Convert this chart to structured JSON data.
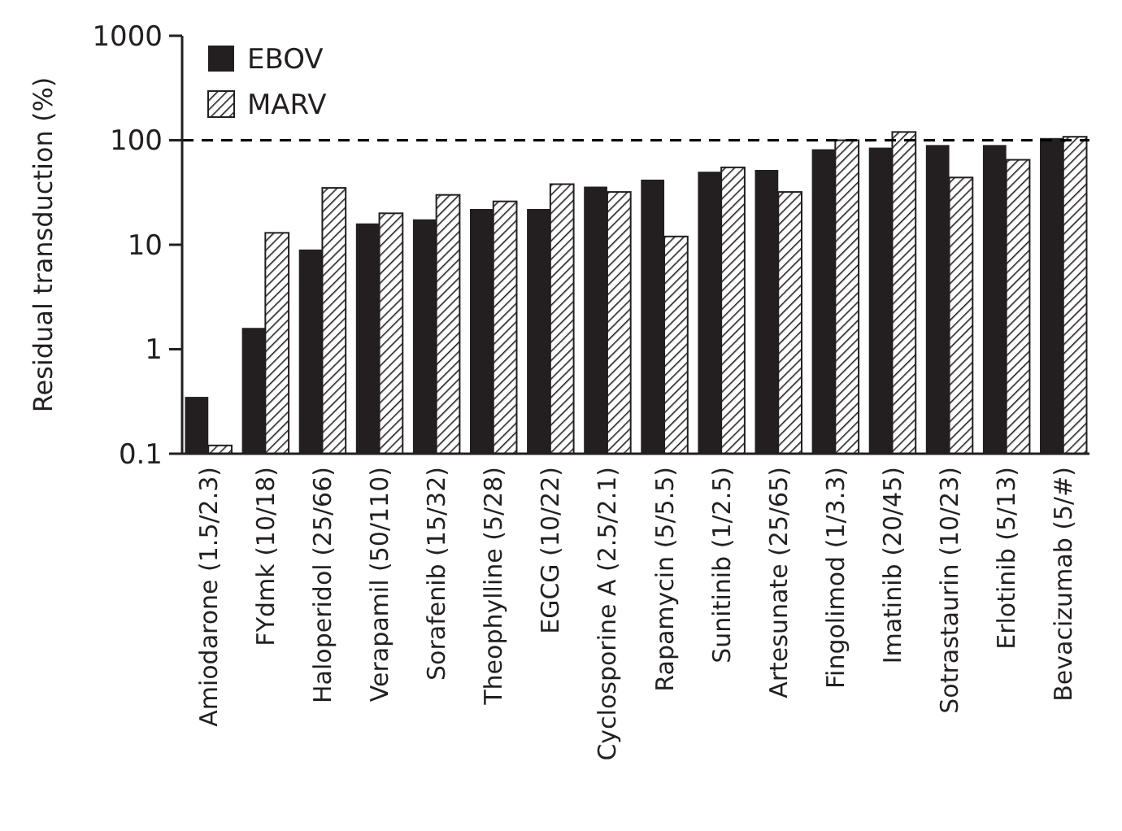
{
  "chart_data": {
    "type": "bar",
    "ylabel": "Residual transduction (%)",
    "log": true,
    "categories": [
      "Amiodarone (1.5/2.3)",
      "FYdmk (10/18)",
      "Haloperidol (25/66)",
      "Verapamil (50/110)",
      "Sorafenib (15/32)",
      "Theophylline (5/28)",
      "EGCG (10/22)",
      "Cyclosporine A (2.5/2.1)",
      "Rapamycin (5/5.5)",
      "Sunitinib (1/2.5)",
      "Artesunate (25/65)",
      "Fingolimod (1/3.3)",
      "Imatinib (20/45)",
      "Sotrastaurin (10/23)",
      "Erlotinib (5/13)",
      "Bevacizumab (5/#)"
    ],
    "series": [
      {
        "name": "EBOV",
        "color": "#231f20",
        "values": [
          0.35,
          1.6,
          9,
          16,
          17.5,
          22,
          22,
          36,
          42,
          50,
          52,
          82,
          85,
          90,
          90,
          105
        ]
      },
      {
        "name": "MARV",
        "color": "#231f20",
        "values": [
          0.12,
          13,
          35,
          20,
          30,
          26,
          38,
          32,
          12,
          55,
          32,
          100,
          120,
          44,
          65,
          108
        ]
      }
    ],
    "ylim": [
      0.1,
      1000
    ],
    "yticks": [
      0.1,
      1,
      10,
      100,
      1000
    ],
    "grid": false,
    "legend": "top left",
    "ref_lines": [
      {
        "axis": "y",
        "value": 100,
        "line_style": "dashed",
        "color": "#000000"
      }
    ]
  }
}
